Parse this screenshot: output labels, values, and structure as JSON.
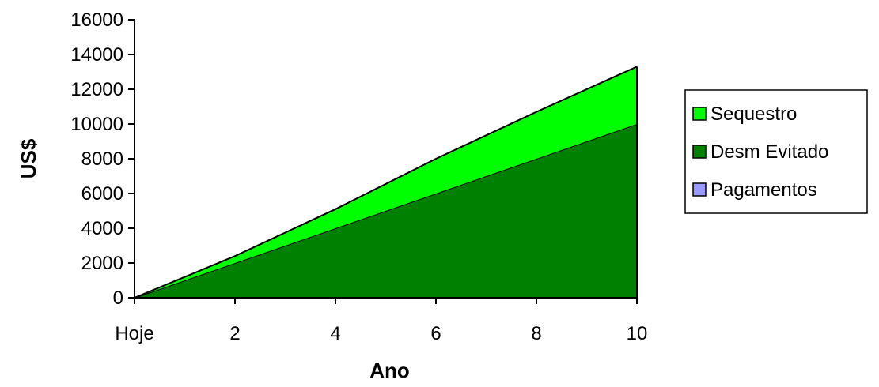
{
  "chart_data": {
    "type": "area",
    "stacked": true,
    "x": [
      "Hoje",
      "2",
      "4",
      "6",
      "8",
      "10"
    ],
    "x_values": [
      0,
      2,
      4,
      6,
      8,
      10
    ],
    "xlabel": "Ano",
    "ylabel": "US$",
    "ylim": [
      0,
      16000
    ],
    "yticks": [
      "0",
      "2000",
      "4000",
      "6000",
      "8000",
      "10000",
      "12000",
      "14000",
      "16000"
    ],
    "grid": false,
    "legend_position": "right",
    "series": [
      {
        "name": "Pagamentos",
        "color": "#9999ff",
        "values": [
          0,
          0,
          0,
          0,
          0,
          0
        ]
      },
      {
        "name": "Desm Evitado",
        "color": "#008000",
        "values": [
          0,
          2000,
          4000,
          6000,
          8000,
          10000
        ]
      },
      {
        "name": "Sequestro",
        "color": "#00ff00",
        "values": [
          0,
          400,
          1100,
          2000,
          2700,
          3300
        ]
      }
    ],
    "legend_order": [
      "Sequestro",
      "Desm Evitado",
      "Pagamentos"
    ]
  }
}
